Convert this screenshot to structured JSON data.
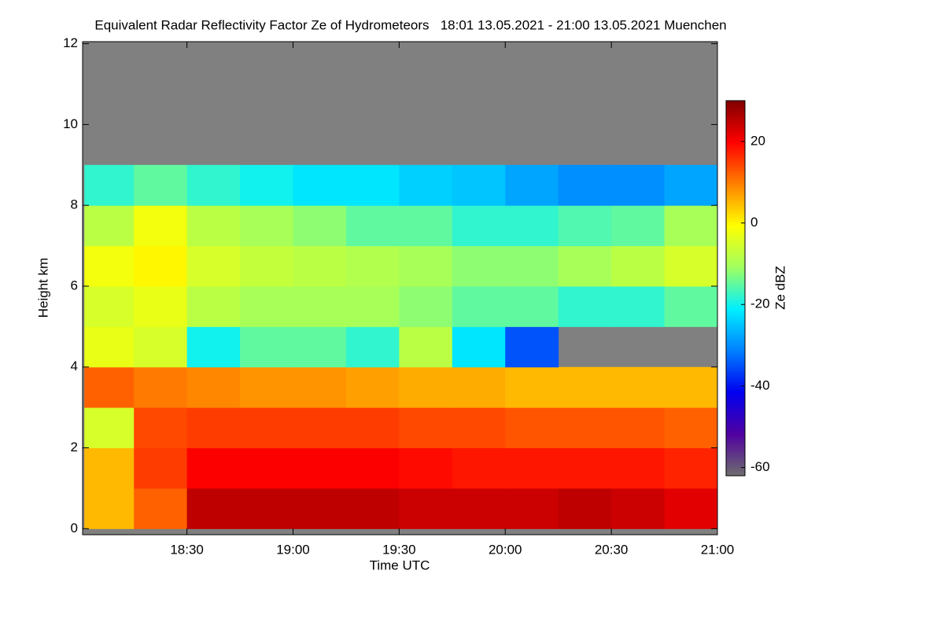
{
  "chart_data": {
    "type": "heatmap",
    "title": "Equivalent Radar Reflectivity Factor Ze of Hydrometeors   18:01 13.05.2021 - 21:00 13.05.2021 Muenchen",
    "x_label": "Time UTC",
    "y_label": "Height km",
    "colorbar_label": "Ze dBZ",
    "xlim": [
      1080.5,
      1260
    ],
    "xticks": [
      {
        "value": 1110,
        "label": "18:30"
      },
      {
        "value": 1140,
        "label": "19:00"
      },
      {
        "value": 1170,
        "label": "19:30"
      },
      {
        "value": 1200,
        "label": "20:00"
      },
      {
        "value": 1230,
        "label": "20:30"
      },
      {
        "value": 1260,
        "label": "21:00"
      }
    ],
    "ylim": [
      -0.15,
      12.05
    ],
    "yticks": [
      0,
      2,
      4,
      6,
      8,
      10,
      12
    ],
    "zlim": [
      -62,
      30
    ],
    "zticks": [
      -60,
      -40,
      -20,
      0,
      20
    ],
    "colorscale": [
      "#6e6e6e",
      "#5000a0",
      "#0000f0",
      "#0080ff",
      "#00f0ff",
      "#a0ff60",
      "#ffff00",
      "#ff8000",
      "#ff0000",
      "#800000"
    ],
    "missing_color": "#808080",
    "xbins": [
      1081,
      1095,
      1110,
      1125,
      1140,
      1155,
      1170,
      1185,
      1200,
      1215,
      1230,
      1245,
      1260
    ],
    "ybins": [
      0,
      1,
      2,
      3,
      4,
      5,
      6,
      7,
      8,
      9,
      10,
      11,
      12
    ],
    "values": [
      [
        5,
        12,
        25,
        25,
        25,
        25,
        24,
        24,
        24,
        25,
        24,
        22
      ],
      [
        5,
        15,
        20,
        20,
        20,
        20,
        19,
        18,
        18,
        18,
        18,
        17
      ],
      [
        -5,
        14,
        15,
        15,
        15,
        15,
        14,
        14,
        13,
        13,
        13,
        12
      ],
      [
        12,
        10,
        9,
        8,
        8,
        7,
        6,
        6,
        5,
        5,
        5,
        5
      ],
      [
        -3,
        -5,
        -20,
        -15,
        -15,
        -18,
        -8,
        -22,
        -35,
        null,
        null,
        null
      ],
      [
        -5,
        -3,
        -8,
        -10,
        -10,
        -10,
        -12,
        -15,
        -15,
        -18,
        -18,
        -15
      ],
      [
        -2,
        0,
        -5,
        -7,
        -8,
        -9,
        -10,
        -12,
        -12,
        -10,
        -8,
        -5
      ],
      [
        -8,
        -2,
        -8,
        -10,
        -12,
        -15,
        -15,
        -18,
        -18,
        -16,
        -15,
        -10
      ],
      [
        -18,
        -15,
        -18,
        -20,
        -22,
        -22,
        -24,
        -25,
        -28,
        -30,
        -30,
        -28
      ],
      [
        null,
        null,
        null,
        null,
        null,
        null,
        null,
        null,
        null,
        null,
        null,
        null
      ],
      [
        null,
        null,
        null,
        null,
        null,
        null,
        null,
        null,
        null,
        null,
        null,
        null
      ],
      [
        null,
        null,
        null,
        null,
        null,
        null,
        null,
        null,
        null,
        null,
        null,
        null
      ]
    ]
  }
}
